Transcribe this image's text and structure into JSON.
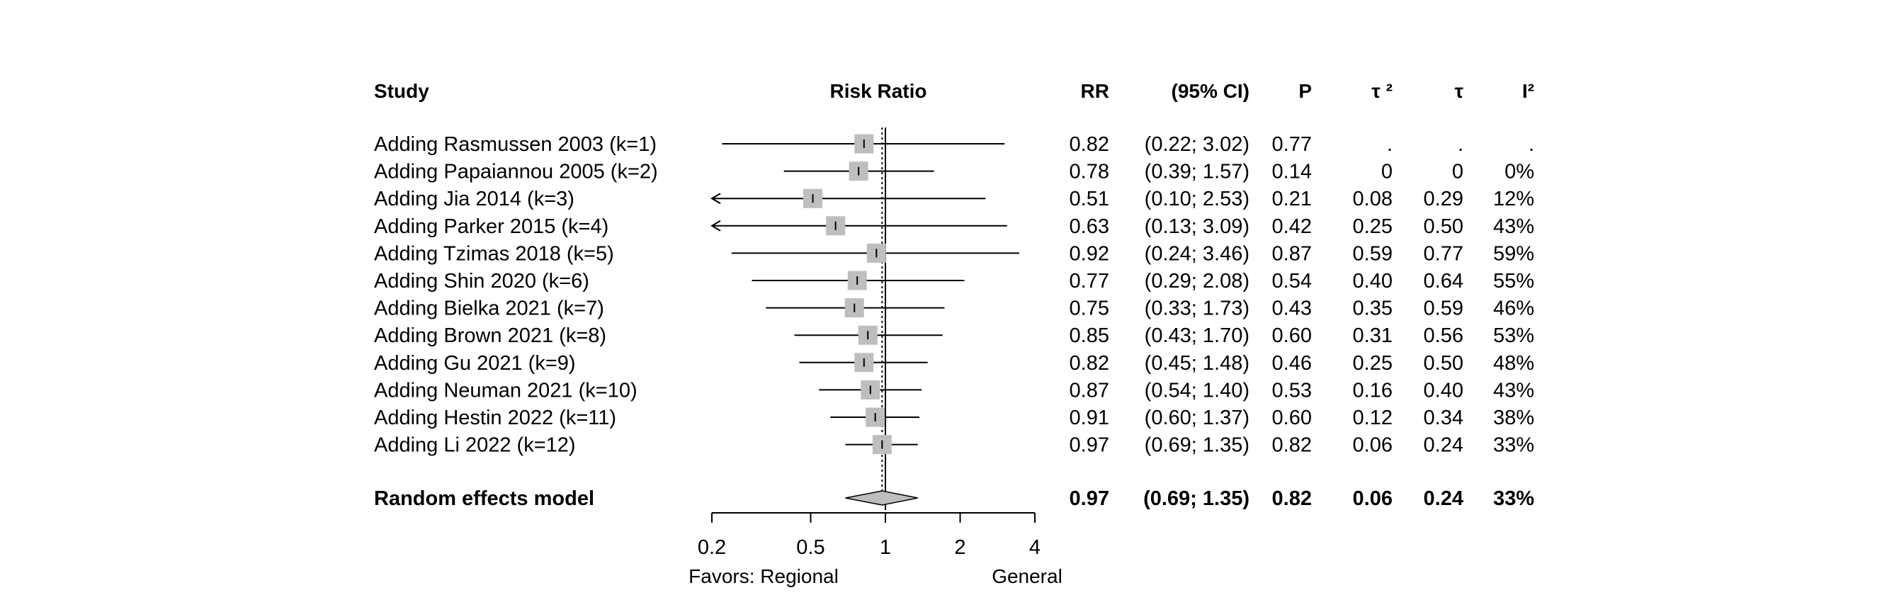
{
  "headers": {
    "study": "Study",
    "plot": "Risk Ratio",
    "rr": "RR",
    "ci": "(95% CI)",
    "p": "P",
    "tau2": "τ ²",
    "tau": "τ",
    "i2": "I²"
  },
  "chart_data": {
    "type": "forest",
    "scale": "log",
    "xlim": [
      0.2,
      4
    ],
    "ref_line": 1,
    "pooled_line": 0.97,
    "x_ticks": [
      "0.2",
      "0.5",
      "1",
      "2",
      "4"
    ],
    "label_left": "Favors: Regional",
    "label_right": "General",
    "rows": [
      {
        "study": "Adding Rasmussen 2003 (k=1)",
        "rr": 0.82,
        "lo": 0.22,
        "hi": 3.02,
        "rr_text": "0.82",
        "ci_text": "(0.22; 3.02)",
        "p": "0.77",
        "tau2": ".",
        "tau": ".",
        "i2": "."
      },
      {
        "study": "Adding Papaiannou 2005 (k=2)",
        "rr": 0.78,
        "lo": 0.39,
        "hi": 1.57,
        "rr_text": "0.78",
        "ci_text": "(0.39; 1.57)",
        "p": "0.14",
        "tau2": "0",
        "tau": "0",
        "i2": "0%"
      },
      {
        "study": "Adding Jia 2014 (k=3)",
        "rr": 0.51,
        "lo": 0.1,
        "hi": 2.53,
        "rr_text": "0.51",
        "ci_text": "(0.10; 2.53)",
        "p": "0.21",
        "tau2": "0.08",
        "tau": "0.29",
        "i2": "12%"
      },
      {
        "study": "Adding Parker 2015 (k=4)",
        "rr": 0.63,
        "lo": 0.13,
        "hi": 3.09,
        "rr_text": "0.63",
        "ci_text": "(0.13; 3.09)",
        "p": "0.42",
        "tau2": "0.25",
        "tau": "0.50",
        "i2": "43%"
      },
      {
        "study": "Adding Tzimas 2018 (k=5)",
        "rr": 0.92,
        "lo": 0.24,
        "hi": 3.46,
        "rr_text": "0.92",
        "ci_text": "(0.24; 3.46)",
        "p": "0.87",
        "tau2": "0.59",
        "tau": "0.77",
        "i2": "59%"
      },
      {
        "study": "Adding Shin 2020 (k=6)",
        "rr": 0.77,
        "lo": 0.29,
        "hi": 2.08,
        "rr_text": "0.77",
        "ci_text": "(0.29; 2.08)",
        "p": "0.54",
        "tau2": "0.40",
        "tau": "0.64",
        "i2": "55%"
      },
      {
        "study": "Adding Bielka 2021 (k=7)",
        "rr": 0.75,
        "lo": 0.33,
        "hi": 1.73,
        "rr_text": "0.75",
        "ci_text": "(0.33; 1.73)",
        "p": "0.43",
        "tau2": "0.35",
        "tau": "0.59",
        "i2": "46%"
      },
      {
        "study": "Adding Brown 2021 (k=8)",
        "rr": 0.85,
        "lo": 0.43,
        "hi": 1.7,
        "rr_text": "0.85",
        "ci_text": "(0.43; 1.70)",
        "p": "0.60",
        "tau2": "0.31",
        "tau": "0.56",
        "i2": "53%"
      },
      {
        "study": "Adding Gu 2021 (k=9)",
        "rr": 0.82,
        "lo": 0.45,
        "hi": 1.48,
        "rr_text": "0.82",
        "ci_text": "(0.45; 1.48)",
        "p": "0.46",
        "tau2": "0.25",
        "tau": "0.50",
        "i2": "48%"
      },
      {
        "study": "Adding Neuman 2021 (k=10)",
        "rr": 0.87,
        "lo": 0.54,
        "hi": 1.4,
        "rr_text": "0.87",
        "ci_text": "(0.54; 1.40)",
        "p": "0.53",
        "tau2": "0.16",
        "tau": "0.40",
        "i2": "43%"
      },
      {
        "study": "Adding Hestin 2022 (k=11)",
        "rr": 0.91,
        "lo": 0.6,
        "hi": 1.37,
        "rr_text": "0.91",
        "ci_text": "(0.60; 1.37)",
        "p": "0.60",
        "tau2": "0.12",
        "tau": "0.34",
        "i2": "38%"
      },
      {
        "study": "Adding Li 2022 (k=12)",
        "rr": 0.97,
        "lo": 0.69,
        "hi": 1.35,
        "rr_text": "0.97",
        "ci_text": "(0.69; 1.35)",
        "p": "0.82",
        "tau2": "0.06",
        "tau": "0.24",
        "i2": "33%"
      }
    ],
    "summary": {
      "study": "Random effects model",
      "rr": 0.97,
      "lo": 0.69,
      "hi": 1.35,
      "rr_text": "0.97",
      "ci_text": "(0.69; 1.35)",
      "p": "0.82",
      "tau2": "0.06",
      "tau": "0.24",
      "i2": "33%"
    }
  },
  "colors": {
    "square": "#bebebe",
    "diamond": "#bebebe",
    "line": "#000000"
  }
}
